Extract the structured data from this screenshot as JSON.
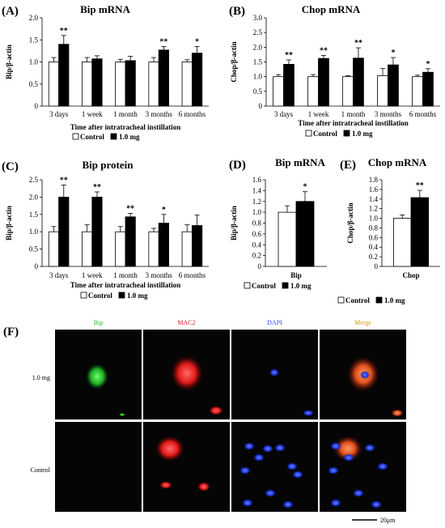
{
  "figure": {
    "colors": {
      "control_bar": "#ffffff",
      "treated_bar": "#000000",
      "channel_bip": "#22c322",
      "channel_mac2": "#e02020",
      "channel_dapi": "#3050e0",
      "channel_merge": "#d0a000"
    }
  },
  "chart_data": [
    {
      "panel": "(A)",
      "type": "bar",
      "title": "Bip mRNA",
      "xlabel": "Time after intratracheal instillation",
      "ylabel": "Bip/β-actin",
      "ylim": [
        0,
        2.0
      ],
      "yticks": [
        "0",
        "0.5",
        "1.0",
        "1.5",
        "2.0"
      ],
      "categories": [
        "3 days",
        "1 week",
        "1 month",
        "3 months",
        "6 months"
      ],
      "series": [
        {
          "name": "Control",
          "values": [
            1.0,
            1.0,
            1.0,
            1.0,
            1.0
          ],
          "errors": [
            0.1,
            0.1,
            0.06,
            0.1,
            0.05
          ]
        },
        {
          "name": "1.0 mg",
          "values": [
            1.4,
            1.07,
            1.03,
            1.27,
            1.2
          ],
          "errors": [
            0.2,
            0.07,
            0.1,
            0.08,
            0.15
          ]
        }
      ],
      "significance": [
        "**",
        "",
        "",
        "**",
        "*"
      ],
      "legend": [
        "Control",
        "1.0 mg"
      ],
      "legend_position": "bottom"
    },
    {
      "panel": "(B)",
      "type": "bar",
      "title": "Chop mRNA",
      "xlabel": "Time after intratracheal instillation",
      "ylabel": "Chop/β-actin",
      "ylim": [
        0,
        3.0
      ],
      "yticks": [
        "0",
        "0.5",
        "1.0",
        "1.5",
        "2.0",
        "2.5",
        "3.0"
      ],
      "categories": [
        "3 days",
        "1 week",
        "1 month",
        "3 months",
        "6 months"
      ],
      "series": [
        {
          "name": "Control",
          "values": [
            1.0,
            1.0,
            1.0,
            1.03,
            1.0
          ],
          "errors": [
            0.07,
            0.07,
            0.03,
            0.25,
            0.05
          ]
        },
        {
          "name": "1.0 mg",
          "values": [
            1.42,
            1.62,
            1.63,
            1.4,
            1.15
          ],
          "errors": [
            0.15,
            0.1,
            0.35,
            0.25,
            0.12
          ]
        }
      ],
      "significance": [
        "**",
        "**",
        "**",
        "*",
        "*"
      ],
      "legend": [
        "Control",
        "1.0 mg"
      ],
      "legend_position": "bottom"
    },
    {
      "panel": "(C)",
      "type": "bar",
      "title": "Bip protein",
      "xlabel": "Time after intratracheal instillation",
      "ylabel": "Bip/β-actin",
      "ylim": [
        0,
        2.5
      ],
      "yticks": [
        "0",
        "0.5",
        "1.0",
        "1.5",
        "2.0",
        "2.5"
      ],
      "categories": [
        "3 days",
        "1 week",
        "1 month",
        "3 months",
        "6 months"
      ],
      "series": [
        {
          "name": "Control",
          "values": [
            1.0,
            1.0,
            1.0,
            1.0,
            1.0
          ],
          "errors": [
            0.15,
            0.2,
            0.15,
            0.1,
            0.2
          ]
        },
        {
          "name": "1.0 mg",
          "values": [
            2.0,
            2.0,
            1.43,
            1.25,
            1.18
          ],
          "errors": [
            0.35,
            0.15,
            0.1,
            0.25,
            0.3
          ]
        }
      ],
      "significance": [
        "**",
        "**",
        "**",
        "*",
        ""
      ],
      "legend": [
        "Control",
        "1.0 mg"
      ],
      "legend_position": "bottom"
    },
    {
      "panel": "(D)",
      "type": "bar",
      "title": "Bip mRNA",
      "xlabel": "",
      "ylabel": "Bip/β-actin",
      "ylim": [
        0,
        1.6
      ],
      "yticks": [
        "0",
        "0.2",
        "0.4",
        "0.6",
        "0.8",
        "1.0",
        "1.2",
        "1.4",
        "1.6"
      ],
      "categories": [
        "Bip"
      ],
      "series": [
        {
          "name": "Control",
          "values": [
            1.0
          ],
          "errors": [
            0.12
          ]
        },
        {
          "name": "1.0 mg",
          "values": [
            1.2
          ],
          "errors": [
            0.18
          ]
        }
      ],
      "significance": [
        "*"
      ],
      "legend": [
        "Control",
        "1.0 mg"
      ],
      "legend_position": "bottom"
    },
    {
      "panel": "(E)",
      "type": "bar",
      "title": "Chop mRNA",
      "xlabel": "",
      "ylabel": "Chop/β-actin",
      "ylim": [
        0,
        1.8
      ],
      "yticks": [
        "0",
        "0.2",
        "0.4",
        "0.6",
        "0.8",
        "1.0",
        "1.2",
        "1.4",
        "1.6",
        "1.8"
      ],
      "categories": [
        "Chop"
      ],
      "series": [
        {
          "name": "Control",
          "values": [
            1.0
          ],
          "errors": [
            0.07
          ]
        },
        {
          "name": "1.0 mg",
          "values": [
            1.43
          ],
          "errors": [
            0.15
          ]
        }
      ],
      "significance": [
        "**"
      ],
      "legend": [
        "Control",
        "1.0 mg"
      ],
      "legend_position": "bottom"
    }
  ],
  "micrographs": {
    "panel": "(F)",
    "columns": [
      "Bip",
      "MAC2",
      "DAPI",
      "Merge"
    ],
    "rows": [
      "1.0 mg",
      "Control"
    ],
    "scale_bar": "20μm"
  }
}
